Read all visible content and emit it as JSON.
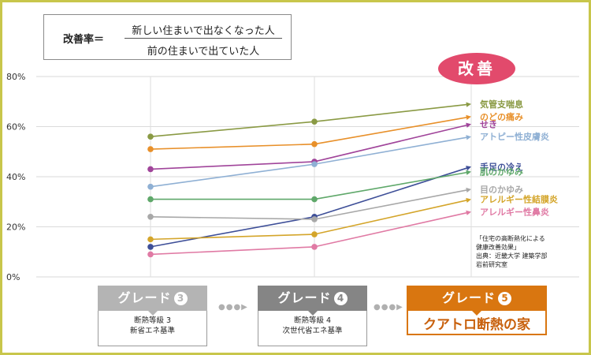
{
  "formula": {
    "label": "改善率＝",
    "numerator": "新しい住まいで出なくなった人",
    "denominator": "前の住まいで出ていた人"
  },
  "badge": "改善",
  "source": [
    "「住宅の高断熱化による",
    "健康改善効果」",
    "出典：近畿大学 建築学部",
    "岩前研究室"
  ],
  "grades": [
    {
      "title": "グレード",
      "num": "3",
      "lines": [
        "断熱等級 3",
        "新省エネ基準"
      ]
    },
    {
      "title": "グレード",
      "num": "4",
      "lines": [
        "断熱等級 4",
        "次世代省エネ基準"
      ]
    },
    {
      "title": "グレード",
      "num": "5",
      "name": "クアトロ断熱の家"
    }
  ],
  "arrows": "●●●▶",
  "chart_data": {
    "type": "line",
    "x": [
      "グレード3",
      "グレード4",
      "グレード5"
    ],
    "ylim": [
      0,
      80
    ],
    "yticks": [
      "0%",
      "20%",
      "40%",
      "60%",
      "80%"
    ],
    "grid": "horizontal",
    "legend": "right",
    "series": [
      {
        "name": "気管支喘息",
        "values": [
          56,
          62,
          69
        ],
        "color": "#8a9a44"
      },
      {
        "name": "のどの痛み",
        "values": [
          51,
          53,
          64
        ],
        "color": "#e8902a"
      },
      {
        "name": "せき",
        "values": [
          43,
          46,
          61
        ],
        "color": "#a0449a"
      },
      {
        "name": "アトピー性皮膚炎",
        "values": [
          36,
          45,
          56
        ],
        "color": "#8fb0d4"
      },
      {
        "name": "手足の冷え",
        "values": [
          12,
          24,
          44
        ],
        "color": "#3e4f98"
      },
      {
        "name": "肌のかゆみ",
        "values": [
          31,
          31,
          42
        ],
        "color": "#5fa86a"
      },
      {
        "name": "目のかゆみ",
        "values": [
          24,
          23,
          35
        ],
        "color": "#a8a8a8"
      },
      {
        "name": "アレルギー性結膜炎",
        "values": [
          15,
          17,
          31
        ],
        "color": "#d4a52a"
      },
      {
        "name": "アレルギー性鼻炎",
        "values": [
          9,
          12,
          26
        ],
        "color": "#e07aa4"
      }
    ]
  }
}
